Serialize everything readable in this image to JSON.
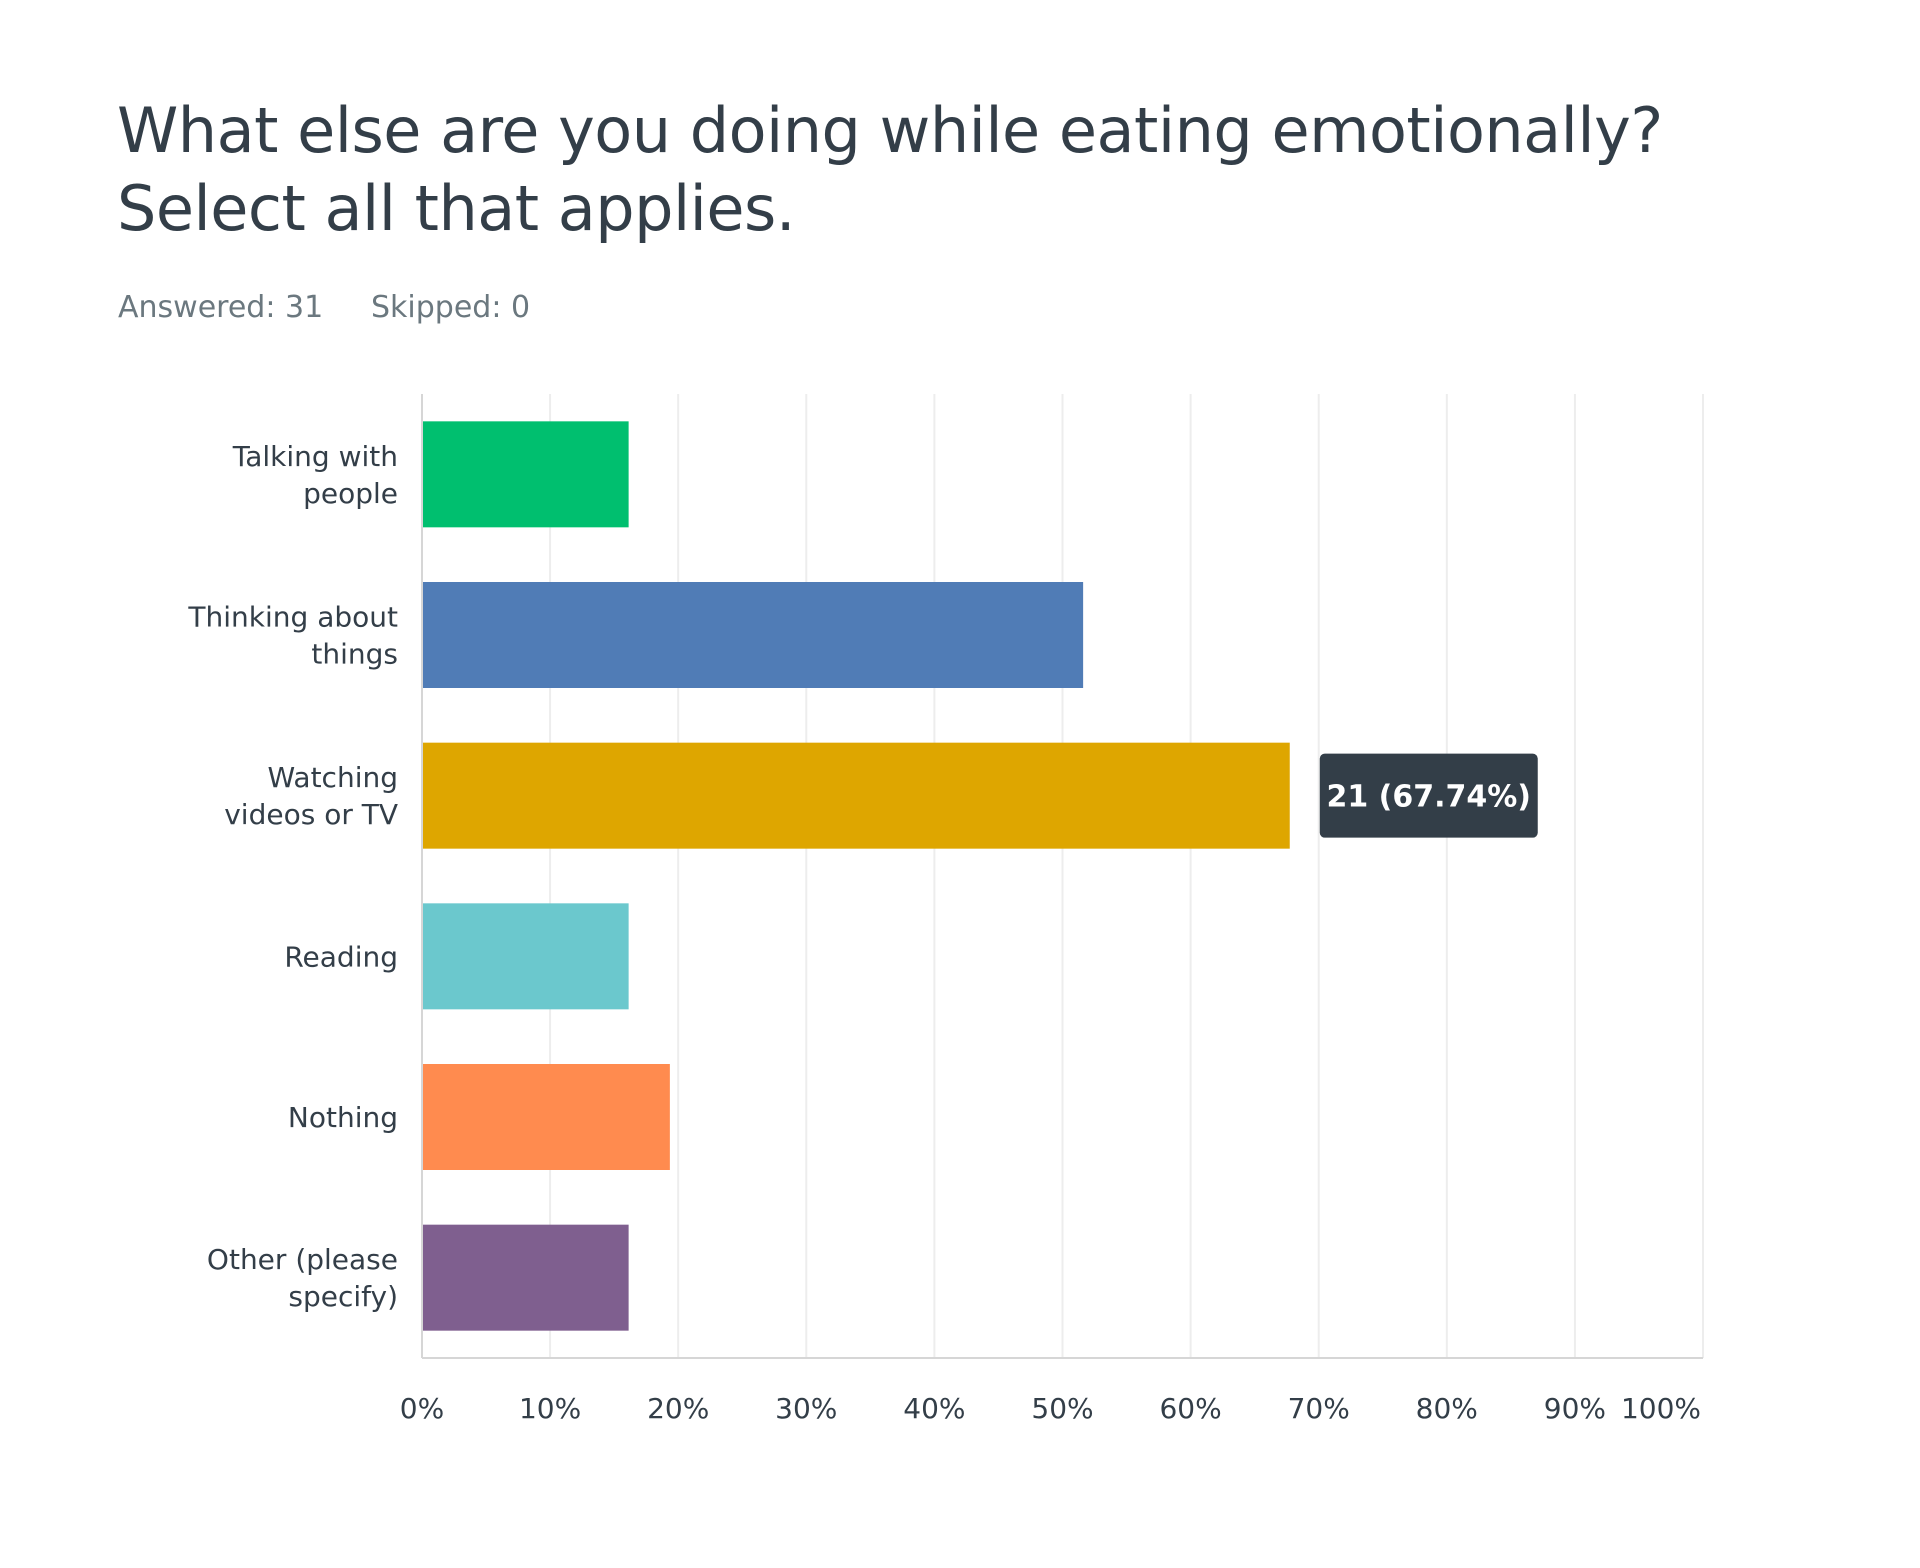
{
  "question": {
    "title": "What else are you doing while eating emotionally? Select all that applies.",
    "answered": "Answered: 31",
    "skipped": "Skipped: 0"
  },
  "tooltip": {
    "category_index": 2,
    "text": "21 (67.74%)",
    "background": "#333e48"
  },
  "chart_data": {
    "type": "bar",
    "orientation": "horizontal",
    "categories": [
      [
        "Talking with",
        "people"
      ],
      [
        "Thinking about",
        "things"
      ],
      [
        "Watching",
        "videos or TV"
      ],
      [
        "Reading"
      ],
      [
        "Nothing"
      ],
      [
        "Other (please",
        "specify)"
      ]
    ],
    "values": [
      16.13,
      51.61,
      67.74,
      16.13,
      19.35,
      16.13
    ],
    "colors": [
      "#00bf6f",
      "#507cb6",
      "#dea600",
      "#6bc8cd",
      "#ff8b4f",
      "#7f5f8f"
    ],
    "xlim": [
      0,
      100
    ],
    "x_ticks": [
      "0%",
      "10%",
      "20%",
      "30%",
      "40%",
      "50%",
      "60%",
      "70%",
      "80%",
      "90%",
      "100%"
    ],
    "grid": true
  }
}
